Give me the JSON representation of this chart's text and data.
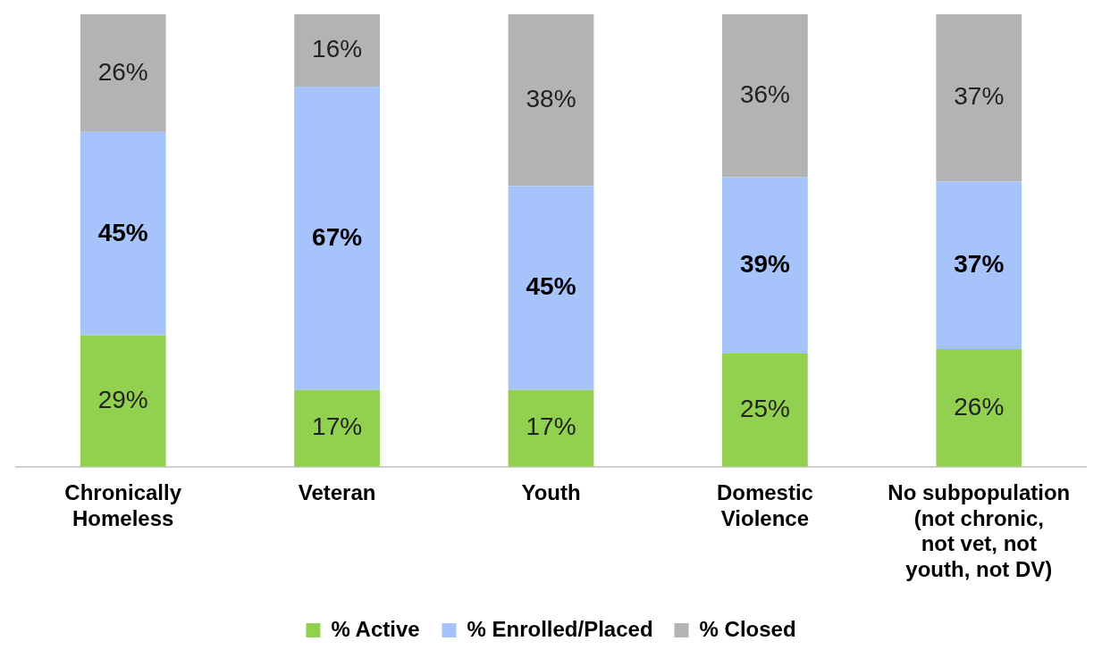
{
  "chart_data": {
    "type": "bar",
    "stacked": true,
    "legend": "bottom",
    "grid": false,
    "categories": [
      "Chronically Homeless",
      "Veteran",
      "Youth",
      "Domestic Violence",
      "No subpopulation (not chronic, not vet, not youth, not DV)"
    ],
    "series": [
      {
        "name": "% Active",
        "color": "#92d050",
        "values": [
          29,
          17,
          17,
          25,
          26
        ],
        "value_labels": [
          "29%",
          "17%",
          "17%",
          "25%",
          "26%"
        ]
      },
      {
        "name": "% Enrolled/Placed",
        "color": "#a6c3fb",
        "values": [
          45,
          67,
          45,
          39,
          37
        ],
        "value_labels": [
          "45%",
          "67%",
          "45%",
          "39%",
          "37%"
        ]
      },
      {
        "name": "% Closed",
        "color": "#b3b3b3",
        "values": [
          26,
          16,
          38,
          36,
          37
        ],
        "value_labels": [
          "26%",
          "16%",
          "38%",
          "36%",
          "37%"
        ]
      }
    ]
  }
}
